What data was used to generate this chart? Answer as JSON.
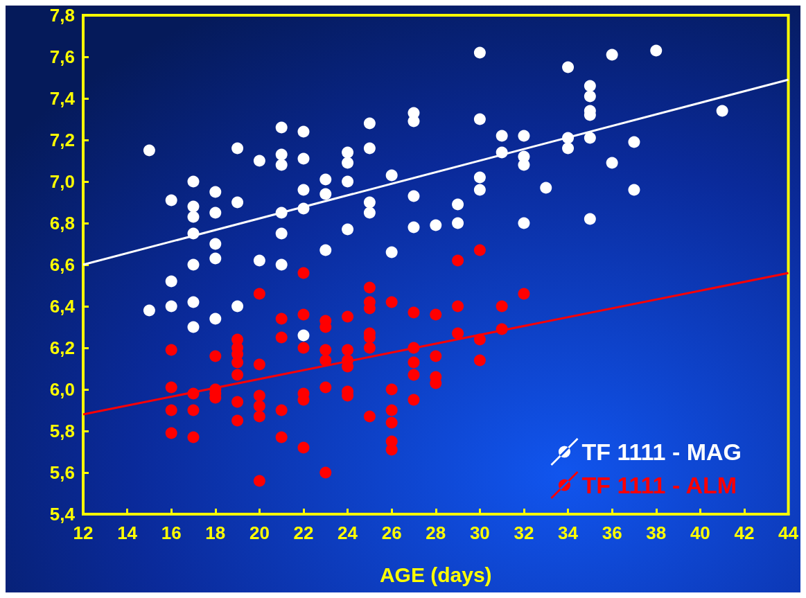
{
  "chart_data": {
    "type": "scatter",
    "xlabel": "AGE (days)",
    "xlim": [
      12,
      44
    ],
    "xticks": [
      12,
      14,
      16,
      18,
      20,
      22,
      24,
      26,
      28,
      30,
      32,
      34,
      36,
      38,
      40,
      42,
      44
    ],
    "ylim": [
      5.4,
      7.8
    ],
    "yticks": [
      {
        "value": 5.4,
        "label": "5,4"
      },
      {
        "value": 5.6,
        "label": "5,6"
      },
      {
        "value": 5.8,
        "label": "5,8"
      },
      {
        "value": 6.0,
        "label": "6,0"
      },
      {
        "value": 6.2,
        "label": "6,2"
      },
      {
        "value": 6.4,
        "label": "6,4"
      },
      {
        "value": 6.6,
        "label": "6,6"
      },
      {
        "value": 6.8,
        "label": "6,8"
      },
      {
        "value": 7.0,
        "label": "7,0"
      },
      {
        "value": 7.2,
        "label": "7,2"
      },
      {
        "value": 7.4,
        "label": "7,4"
      },
      {
        "value": 7.6,
        "label": "7,6"
      },
      {
        "value": 7.8,
        "label": "7,8"
      }
    ],
    "grid": false,
    "legend": "bottom right",
    "marker": "circle",
    "series": [
      {
        "name": "TF 1111 - MAG",
        "color": "#ffffff",
        "x": [
          15,
          15,
          16,
          16,
          16,
          17,
          17,
          17,
          17,
          17,
          17,
          17,
          18,
          18,
          18,
          18,
          18,
          19,
          19,
          19,
          20,
          20,
          21,
          21,
          21,
          21,
          21,
          21,
          22,
          22,
          22,
          22,
          22,
          23,
          23,
          23,
          24,
          24,
          24,
          24,
          25,
          25,
          25,
          25,
          26,
          26,
          27,
          27,
          27,
          27,
          28,
          29,
          29,
          30,
          30,
          30,
          30,
          31,
          31,
          32,
          32,
          32,
          32,
          33,
          34,
          34,
          34,
          35,
          35,
          35,
          35,
          35,
          35,
          36,
          36,
          37,
          37,
          38,
          41
        ],
        "values": [
          7.15,
          6.38,
          6.91,
          6.52,
          6.4,
          7.0,
          6.88,
          6.83,
          6.75,
          6.6,
          6.42,
          6.3,
          6.95,
          6.85,
          6.7,
          6.63,
          6.34,
          7.16,
          6.9,
          6.4,
          7.1,
          6.62,
          7.26,
          7.13,
          7.08,
          6.85,
          6.75,
          6.6,
          7.24,
          7.11,
          6.96,
          6.87,
          6.26,
          7.01,
          6.94,
          6.67,
          7.14,
          7.09,
          7.0,
          6.77,
          7.28,
          7.16,
          6.9,
          6.85,
          7.03,
          6.66,
          7.33,
          7.29,
          6.93,
          6.78,
          6.79,
          6.89,
          6.8,
          7.62,
          7.3,
          7.02,
          6.96,
          7.22,
          7.14,
          7.22,
          7.12,
          7.08,
          6.8,
          6.97,
          7.55,
          7.21,
          7.16,
          7.46,
          7.41,
          7.34,
          7.32,
          7.21,
          6.82,
          7.61,
          7.09,
          7.19,
          6.96,
          7.63,
          7.34
        ]
      },
      {
        "name": "TF 1111 - ALM",
        "color": "#ff0000",
        "x": [
          16,
          16,
          16,
          16,
          17,
          17,
          17,
          18,
          18,
          18,
          18,
          19,
          19,
          19,
          19,
          19,
          19,
          19,
          20,
          20,
          20,
          20,
          20,
          20,
          21,
          21,
          21,
          21,
          22,
          22,
          22,
          22,
          22,
          22,
          23,
          23,
          23,
          23,
          23,
          23,
          24,
          24,
          24,
          24,
          24,
          24,
          25,
          25,
          25,
          25,
          25,
          25,
          25,
          26,
          26,
          26,
          26,
          26,
          26,
          27,
          27,
          27,
          27,
          27,
          28,
          28,
          28,
          28,
          29,
          29,
          29,
          30,
          30,
          30,
          31,
          31,
          32
        ],
        "values": [
          6.19,
          6.01,
          5.9,
          5.79,
          5.98,
          5.9,
          5.77,
          6.16,
          6.0,
          5.98,
          5.96,
          6.24,
          6.2,
          6.17,
          6.13,
          6.07,
          5.94,
          5.85,
          6.46,
          6.12,
          5.97,
          5.92,
          5.87,
          5.56,
          6.34,
          6.25,
          5.9,
          5.77,
          6.56,
          6.36,
          6.2,
          5.98,
          5.95,
          5.72,
          6.33,
          6.3,
          6.19,
          6.14,
          6.01,
          5.6,
          6.35,
          6.19,
          6.14,
          6.11,
          5.99,
          5.97,
          6.49,
          6.42,
          6.39,
          6.27,
          6.25,
          6.2,
          5.87,
          6.42,
          6.0,
          5.9,
          5.84,
          5.75,
          5.71,
          6.37,
          6.2,
          6.13,
          6.07,
          5.95,
          6.36,
          6.16,
          6.06,
          6.03,
          6.62,
          6.4,
          6.27,
          6.67,
          6.24,
          6.14,
          6.4,
          6.29,
          6.46
        ]
      },
      {
        "type": "line",
        "marker": "none",
        "color": "#ffffff",
        "x": [
          12,
          44
        ],
        "values": [
          6.6,
          7.49
        ]
      },
      {
        "type": "line",
        "marker": "none",
        "color": "#ff0000",
        "x": [
          12,
          44
        ],
        "values": [
          5.88,
          6.56
        ]
      }
    ]
  }
}
